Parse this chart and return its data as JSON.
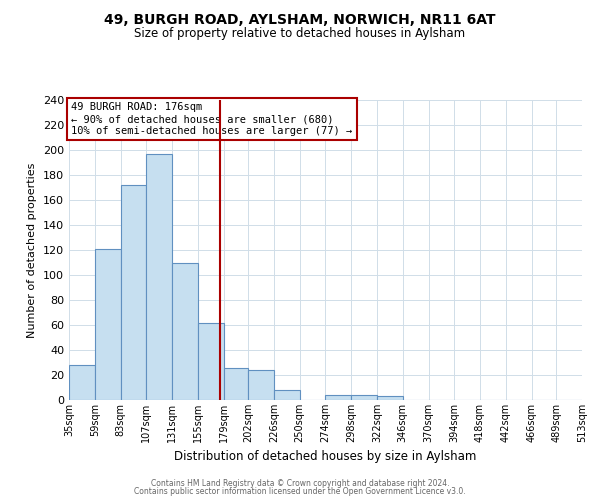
{
  "title": "49, BURGH ROAD, AYLSHAM, NORWICH, NR11 6AT",
  "subtitle": "Size of property relative to detached houses in Aylsham",
  "xlabel": "Distribution of detached houses by size in Aylsham",
  "ylabel": "Number of detached properties",
  "bin_edges": [
    35,
    59,
    83,
    107,
    131,
    155,
    179,
    202,
    226,
    250,
    274,
    298,
    322,
    346,
    370,
    394,
    418,
    442,
    466,
    489,
    513
  ],
  "bin_labels": [
    "35sqm",
    "59sqm",
    "83sqm",
    "107sqm",
    "131sqm",
    "155sqm",
    "179sqm",
    "202sqm",
    "226sqm",
    "250sqm",
    "274sqm",
    "298sqm",
    "322sqm",
    "346sqm",
    "370sqm",
    "394sqm",
    "418sqm",
    "442sqm",
    "466sqm",
    "489sqm",
    "513sqm"
  ],
  "counts": [
    28,
    121,
    172,
    197,
    110,
    62,
    26,
    24,
    8,
    0,
    4,
    4,
    3,
    0,
    0,
    0,
    0,
    0,
    0,
    0
  ],
  "bar_color": "#c6dff0",
  "bar_edge_color": "#6090c0",
  "property_size": 176,
  "vline_color": "#aa0000",
  "annotation_text": "49 BURGH ROAD: 176sqm\n← 90% of detached houses are smaller (680)\n10% of semi-detached houses are larger (77) →",
  "annotation_box_edge_color": "#aa0000",
  "ylim": [
    0,
    240
  ],
  "yticks": [
    0,
    20,
    40,
    60,
    80,
    100,
    120,
    140,
    160,
    180,
    200,
    220,
    240
  ],
  "footer1": "Contains HM Land Registry data © Crown copyright and database right 2024.",
  "footer2": "Contains public sector information licensed under the Open Government Licence v3.0.",
  "background_color": "#ffffff",
  "grid_color": "#d0dde8"
}
